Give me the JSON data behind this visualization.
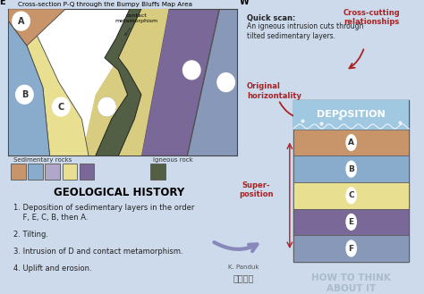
{
  "bg_color": "#ccdaeb",
  "title": "Cross-section P-Q through the Bumpy Bluffs Map Area",
  "cross_section_bg": "#ffffff",
  "layer_colors": {
    "A": "#c8956a",
    "B": "#8aaccc",
    "C": "#e8e090",
    "E": "#7a6898",
    "F": "#8898b8",
    "D_igneous": "#525f45",
    "contact_meta": "#d8cc80"
  },
  "legend_sedimentary": [
    "#c8956a",
    "#8aaccc",
    "#b0a8c8",
    "#e8e090",
    "#7a6898"
  ],
  "legend_igneous": [
    "#525f45"
  ],
  "geo_history_bg": "#dcdccc",
  "geo_history_title": "GEOLOGICAL HISTORY",
  "geo_history_items": [
    "1. Deposition of sedimentary layers in the order\n    F, E, C, B, then A.",
    "2. Tilting.",
    "3. Intrusion of D and contact metamorphism.",
    "4. Uplift and erosion."
  ],
  "deposition_layers": [
    {
      "label": "A",
      "color": "#c8956a"
    },
    {
      "label": "B",
      "color": "#8aaccc"
    },
    {
      "label": "C",
      "color": "#e8e090"
    },
    {
      "label": "E",
      "color": "#7a6898"
    },
    {
      "label": "F",
      "color": "#8898b8"
    }
  ],
  "arrow_color": "#aa2222",
  "author": "K. Panduk",
  "water_color": "#a0c8e0",
  "deposition_text_color": "#ffffff",
  "how_to_think_color": "#aabbcc"
}
